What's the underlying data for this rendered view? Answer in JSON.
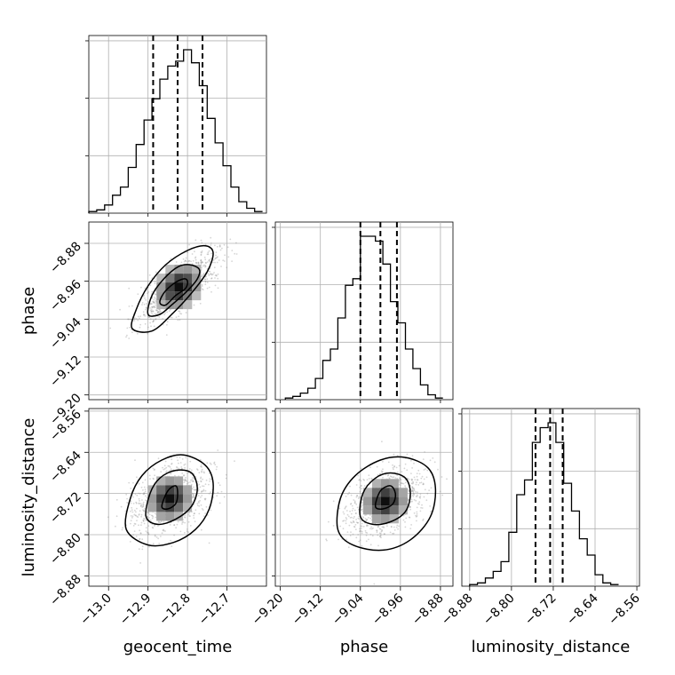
{
  "chart_data": {
    "type": "corner",
    "parameters": [
      {
        "name": "geocent_time",
        "xlim": [
          -13.05,
          -12.6
        ],
        "ticks": [
          -13.0,
          -12.9,
          -12.8,
          -12.7
        ],
        "tick_labels": [
          "−13.0",
          "−12.9",
          "−12.8",
          "−12.7"
        ],
        "quantiles": [
          -12.887,
          -12.825,
          -12.762
        ]
      },
      {
        "name": "phase",
        "xlim": [
          -9.21,
          -8.855
        ],
        "ticks": [
          -9.2,
          -9.12,
          -9.04,
          -8.96,
          -8.88
        ],
        "tick_labels": [
          "−9.20",
          "−9.12",
          "−9.04",
          "−8.96",
          "−8.88"
        ],
        "quantiles": [
          -9.04,
          -9.0,
          -8.967
        ]
      },
      {
        "name": "luminosity_distance",
        "xlim": [
          -8.895,
          -8.555
        ],
        "ticks": [
          -8.88,
          -8.8,
          -8.72,
          -8.64,
          -8.56
        ],
        "tick_labels": [
          "−8.88",
          "−8.80",
          "−8.72",
          "−8.64",
          "−8.56"
        ],
        "quantiles": [
          -8.754,
          -8.726,
          -8.702
        ]
      }
    ],
    "histograms": [
      {
        "param": "geocent_time",
        "bin_edges": [
          -13.05,
          -13.03,
          -13.01,
          -12.99,
          -12.97,
          -12.95,
          -12.93,
          -12.91,
          -12.89,
          -12.87,
          -12.85,
          -12.83,
          -12.81,
          -12.79,
          -12.77,
          -12.75,
          -12.73,
          -12.71,
          -12.69,
          -12.67,
          -12.65,
          -12.63,
          -12.61
        ],
        "counts": [
          0.01,
          0.02,
          0.05,
          0.11,
          0.16,
          0.28,
          0.42,
          0.57,
          0.7,
          0.82,
          0.9,
          0.93,
          1.0,
          0.92,
          0.78,
          0.58,
          0.43,
          0.29,
          0.16,
          0.07,
          0.03,
          0.01
        ]
      },
      {
        "param": "phase",
        "bin_edges": [
          -9.19,
          -9.175,
          -9.16,
          -9.145,
          -9.13,
          -9.115,
          -9.1,
          -9.085,
          -9.07,
          -9.055,
          -9.04,
          -9.025,
          -9.01,
          -8.995,
          -8.98,
          -8.965,
          -8.95,
          -8.935,
          -8.92,
          -8.905,
          -8.89,
          -8.875
        ],
        "counts": [
          0.01,
          0.02,
          0.04,
          0.07,
          0.13,
          0.24,
          0.31,
          0.5,
          0.7,
          0.74,
          1.0,
          1.0,
          0.97,
          0.83,
          0.6,
          0.47,
          0.31,
          0.19,
          0.09,
          0.03,
          0.01
        ]
      },
      {
        "param": "luminosity_distance",
        "bin_edges": [
          -8.88,
          -8.865,
          -8.85,
          -8.835,
          -8.82,
          -8.805,
          -8.79,
          -8.775,
          -8.76,
          -8.745,
          -8.73,
          -8.715,
          -8.7,
          -8.685,
          -8.67,
          -8.655,
          -8.64,
          -8.625,
          -8.61,
          -8.595
        ],
        "counts": [
          0.01,
          0.02,
          0.05,
          0.09,
          0.15,
          0.33,
          0.56,
          0.65,
          0.88,
          0.97,
          1.0,
          0.88,
          0.63,
          0.46,
          0.29,
          0.19,
          0.07,
          0.02,
          0.01
        ]
      }
    ],
    "pairs": [
      {
        "x": "geocent_time",
        "y": "phase",
        "ylim": [
          -9.21,
          -8.835
        ],
        "center": [
          -12.822,
          -8.972
        ],
        "contours": [
          {
            "level": "inner",
            "points": [
              [
                -12.87,
                -9.005
              ],
              [
                -12.86,
                -8.985
              ],
              [
                -12.835,
                -8.965
              ],
              [
                -12.81,
                -8.955
              ],
              [
                -12.8,
                -8.96
              ],
              [
                -12.805,
                -8.975
              ],
              [
                -12.83,
                -8.99
              ],
              [
                -12.855,
                -9.01
              ]
            ]
          },
          {
            "level": "middle",
            "points": [
              [
                -12.9,
                -9.03
              ],
              [
                -12.89,
                -8.99
              ],
              [
                -12.86,
                -8.955
              ],
              [
                -12.825,
                -8.93
              ],
              [
                -12.795,
                -8.925
              ],
              [
                -12.77,
                -8.935
              ],
              [
                -12.775,
                -8.955
              ],
              [
                -12.8,
                -8.98
              ],
              [
                -12.84,
                -9.01
              ],
              [
                -12.87,
                -9.03
              ]
            ]
          },
          {
            "level": "outer",
            "points": [
              [
                -12.94,
                -9.06
              ],
              [
                -12.93,
                -9.02
              ],
              [
                -12.9,
                -8.97
              ],
              [
                -12.855,
                -8.925
              ],
              [
                -12.8,
                -8.895
              ],
              [
                -12.755,
                -8.885
              ],
              [
                -12.735,
                -8.9
              ],
              [
                -12.75,
                -8.94
              ],
              [
                -12.79,
                -8.985
              ],
              [
                -12.84,
                -9.03
              ],
              [
                -12.89,
                -9.065
              ]
            ]
          }
        ]
      },
      {
        "x": "geocent_time",
        "y": "luminosity_distance",
        "ylim": [
          -8.9,
          -8.555
        ],
        "center": [
          -12.845,
          -8.73
        ],
        "contours": [
          {
            "level": "inner",
            "points": [
              [
                -12.865,
                -8.745
              ],
              [
                -12.85,
                -8.715
              ],
              [
                -12.83,
                -8.705
              ],
              [
                -12.825,
                -8.72
              ],
              [
                -12.83,
                -8.74
              ],
              [
                -12.85,
                -8.75
              ]
            ]
          },
          {
            "level": "middle",
            "points": [
              [
                -12.905,
                -8.765
              ],
              [
                -12.895,
                -8.72
              ],
              [
                -12.87,
                -8.69
              ],
              [
                -12.83,
                -8.675
              ],
              [
                -12.79,
                -8.68
              ],
              [
                -12.775,
                -8.71
              ],
              [
                -12.79,
                -8.745
              ],
              [
                -12.83,
                -8.77
              ],
              [
                -12.875,
                -8.78
              ]
            ]
          },
          {
            "level": "outer",
            "points": [
              [
                -12.955,
                -8.79
              ],
              [
                -12.945,
                -8.73
              ],
              [
                -12.915,
                -8.685
              ],
              [
                -12.865,
                -8.655
              ],
              [
                -12.81,
                -8.645
              ],
              [
                -12.755,
                -8.665
              ],
              [
                -12.735,
                -8.7
              ],
              [
                -12.745,
                -8.75
              ],
              [
                -12.78,
                -8.79
              ],
              [
                -12.835,
                -8.815
              ],
              [
                -12.9,
                -8.82
              ]
            ]
          }
        ]
      },
      {
        "x": "phase",
        "y": "luminosity_distance",
        "ylim": [
          -8.9,
          -8.555
        ],
        "center": [
          -8.99,
          -8.735
        ],
        "contours": [
          {
            "level": "inner",
            "points": [
              [
                -9.01,
                -8.745
              ],
              [
                -9.0,
                -8.715
              ],
              [
                -8.98,
                -8.705
              ],
              [
                -8.97,
                -8.72
              ],
              [
                -8.975,
                -8.74
              ],
              [
                -8.995,
                -8.75
              ]
            ]
          },
          {
            "level": "middle",
            "points": [
              [
                -9.04,
                -8.765
              ],
              [
                -9.035,
                -8.72
              ],
              [
                -9.01,
                -8.69
              ],
              [
                -8.98,
                -8.68
              ],
              [
                -8.95,
                -8.69
              ],
              [
                -8.94,
                -8.72
              ],
              [
                -8.95,
                -8.755
              ],
              [
                -8.98,
                -8.775
              ],
              [
                -9.015,
                -8.78
              ]
            ]
          },
          {
            "level": "outer",
            "points": [
              [
                -9.085,
                -8.79
              ],
              [
                -9.08,
                -8.73
              ],
              [
                -9.05,
                -8.685
              ],
              [
                -9.0,
                -8.655
              ],
              [
                -8.95,
                -8.65
              ],
              [
                -8.905,
                -8.67
              ],
              [
                -8.89,
                -8.71
              ],
              [
                -8.9,
                -8.765
              ],
              [
                -8.94,
                -8.81
              ],
              [
                -8.995,
                -8.83
              ],
              [
                -9.055,
                -8.82
              ]
            ]
          }
        ]
      }
    ],
    "grid": true
  }
}
